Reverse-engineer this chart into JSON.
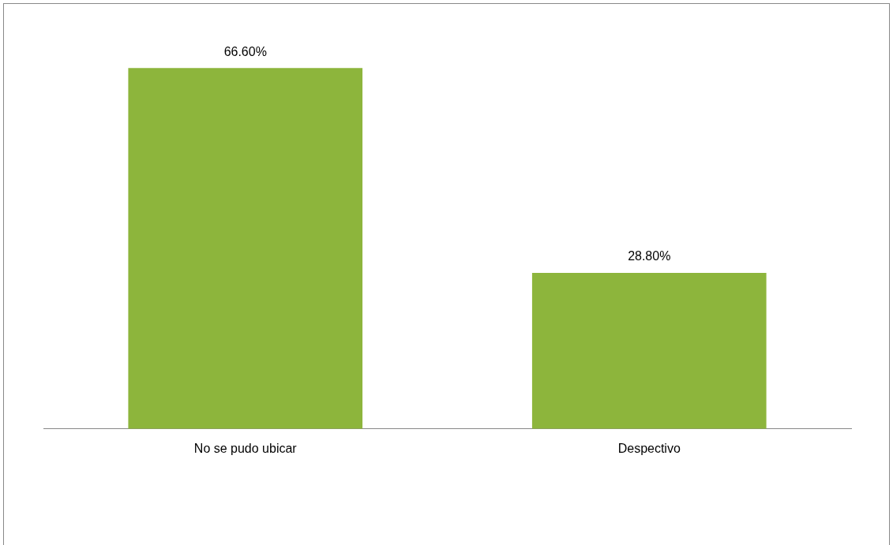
{
  "chart_data": {
    "type": "bar",
    "categories": [
      "No se pudo ubicar",
      "Despectivo"
    ],
    "values": [
      66.6,
      28.8
    ],
    "value_labels": [
      "66.60%",
      "28.80%"
    ],
    "color": "#8db53c",
    "grid": false,
    "legend": false
  }
}
